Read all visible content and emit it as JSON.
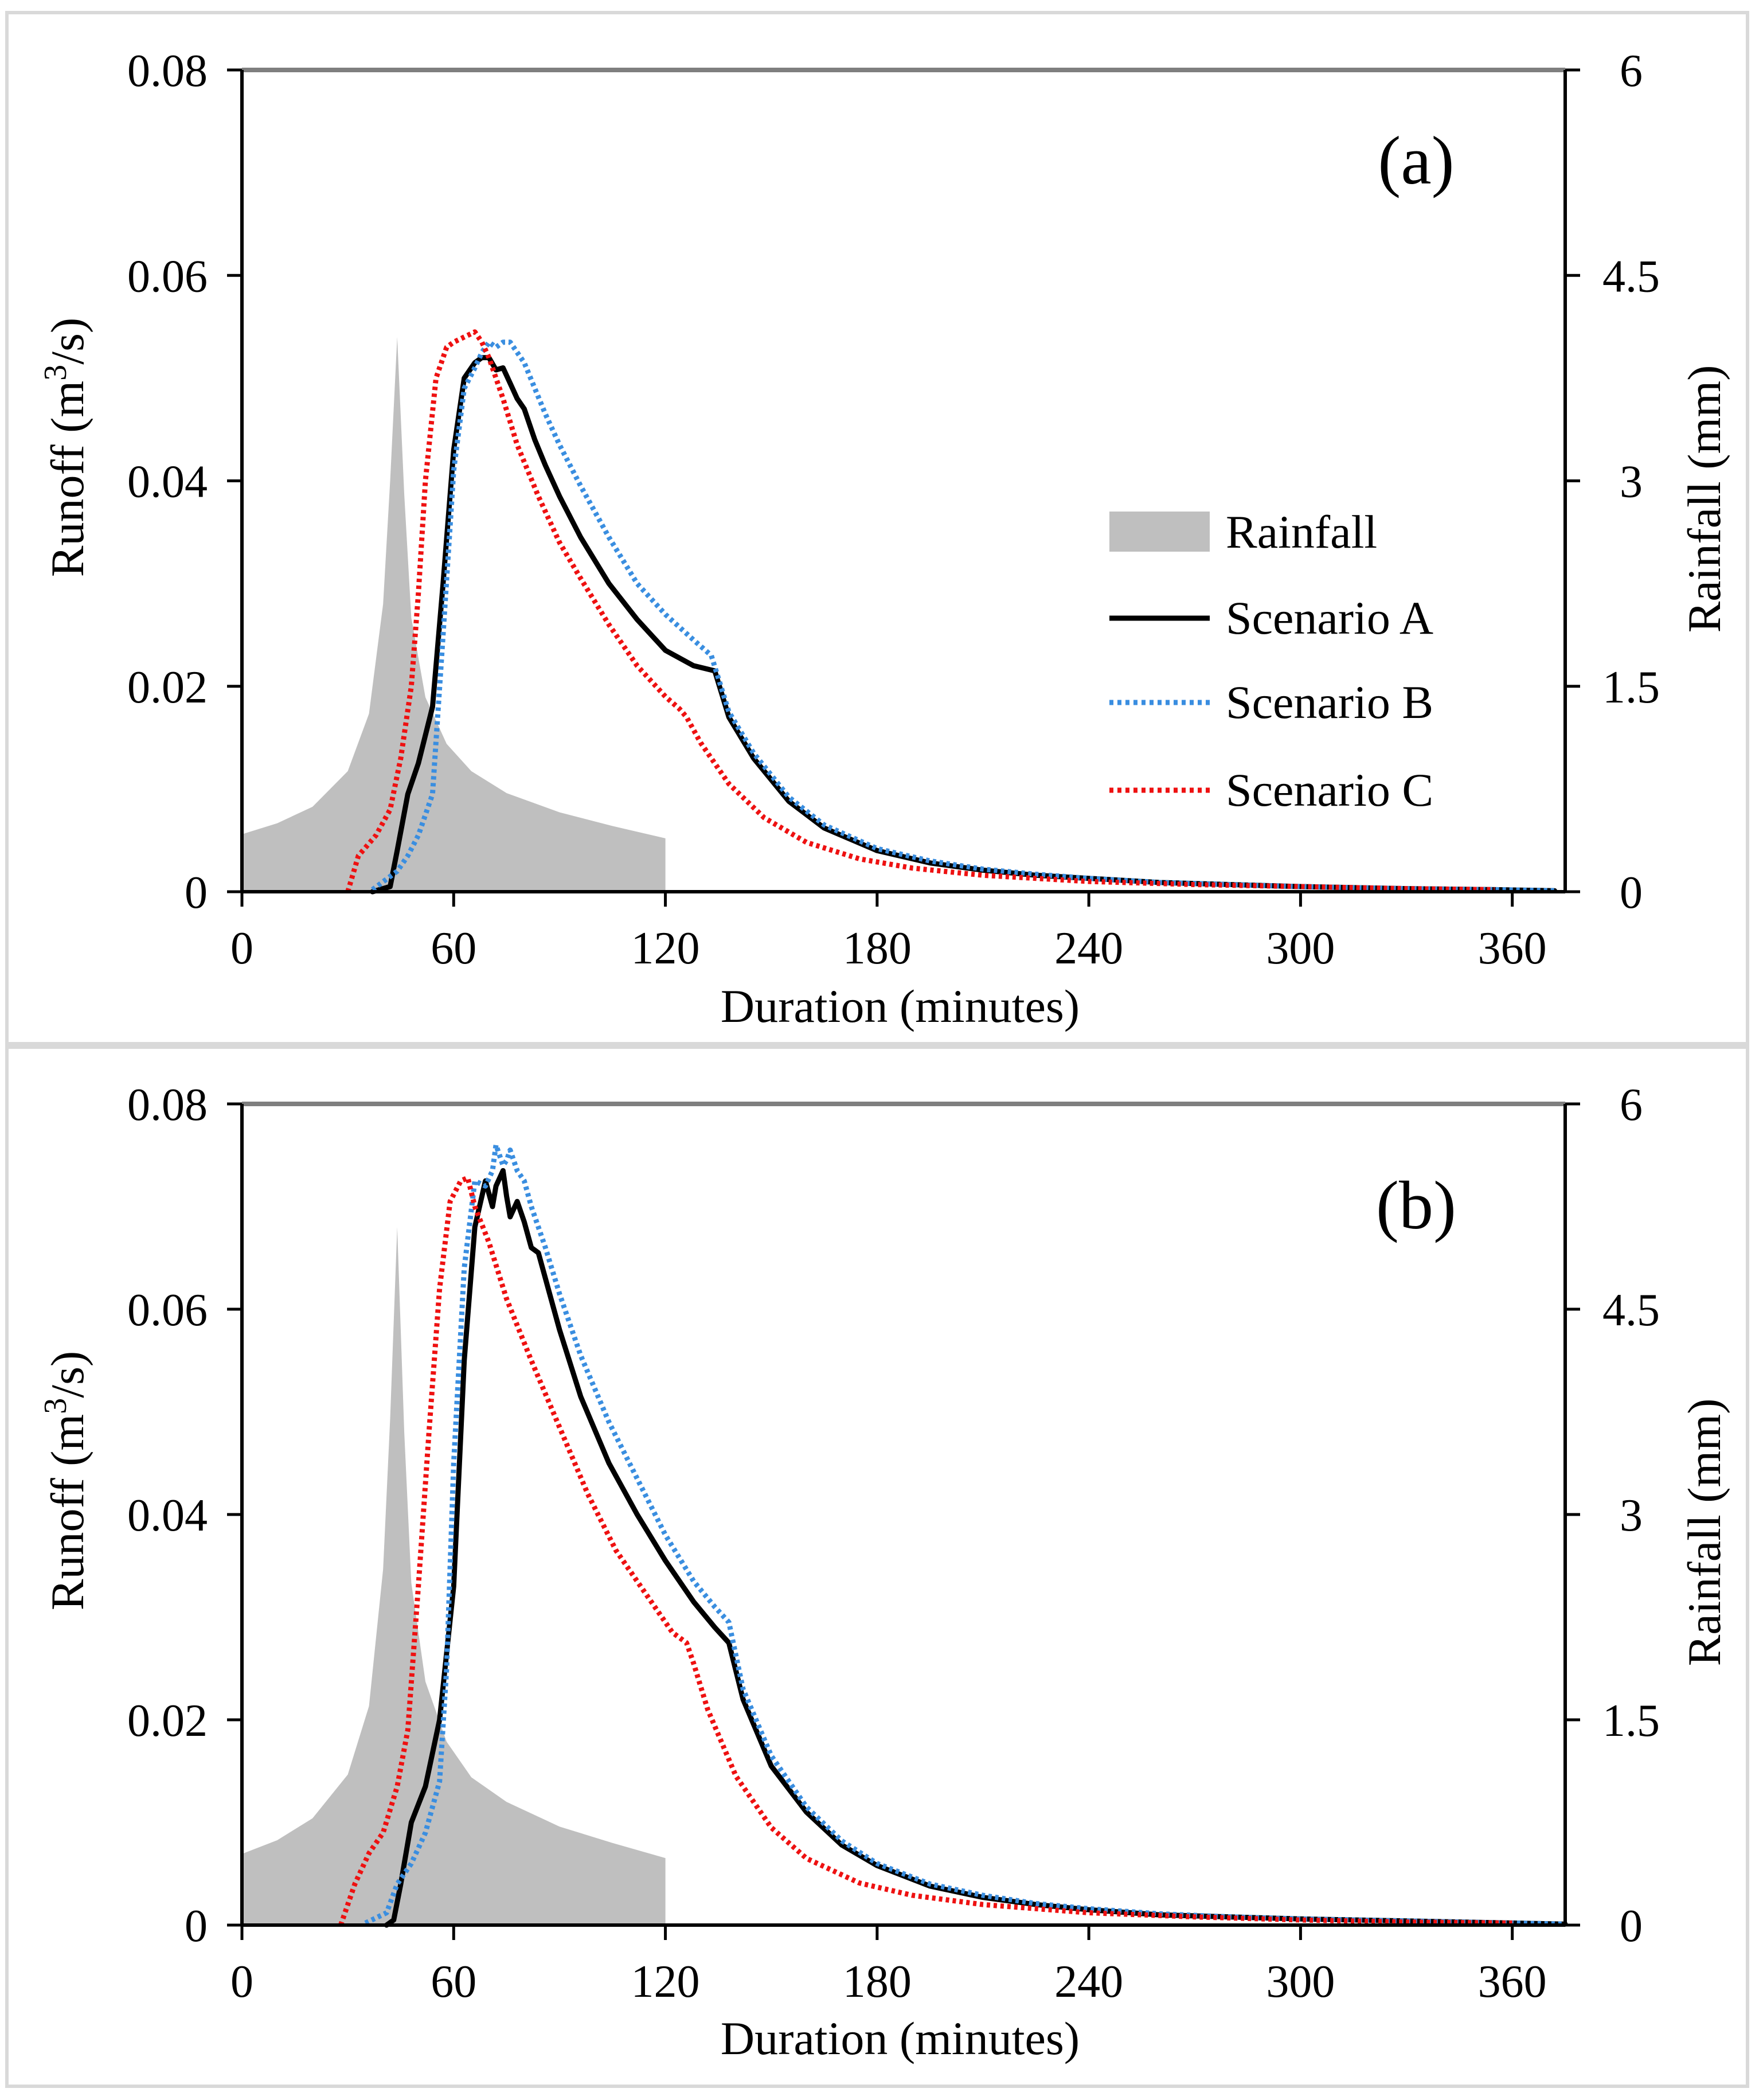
{
  "colors": {
    "rainfall": "#bfbfbf",
    "scenario_a": "#000000",
    "scenario_b": "#3a8ee0",
    "scenario_c": "#ee1111",
    "frame": "#d9d9d9"
  },
  "legend": {
    "rainfall": "Rainfall",
    "scenario_a": "Scenario A",
    "scenario_b": "Scenario B",
    "scenario_c": "Scenario C"
  },
  "chart_data": [
    {
      "type": "line",
      "panel": "(a)",
      "xlabel": "Duration (minutes)",
      "ylabel_prefix": "Runoff (m",
      "ylabel_sup": "3",
      "ylabel_suffix": "/s)",
      "y2label": "Rainfall (mm)",
      "xlim": [
        0,
        375
      ],
      "ylim": [
        0,
        0.08
      ],
      "y2lim": [
        0,
        6
      ],
      "xticks": [
        "0",
        "60",
        "120",
        "180",
        "240",
        "300",
        "360"
      ],
      "yticks": [
        "0",
        "0.02",
        "0.04",
        "0.06",
        "0.08"
      ],
      "y2ticks": [
        "0",
        "1.5",
        "3",
        "4.5",
        "6"
      ],
      "rainfall": {
        "name": "Rainfall",
        "axis": "right",
        "x": [
          0,
          10,
          20,
          30,
          36,
          40,
          42,
          44,
          46,
          48,
          52,
          58,
          65,
          75,
          90,
          105,
          120
        ],
        "values": [
          0.42,
          0.5,
          0.62,
          0.88,
          1.3,
          2.1,
          3.0,
          4.05,
          2.9,
          2.0,
          1.42,
          1.08,
          0.88,
          0.72,
          0.58,
          0.48,
          0.39
        ]
      },
      "series": [
        {
          "name": "Scenario A",
          "x": [
            37,
            42,
            44,
            47,
            50,
            54,
            57,
            60,
            63,
            66,
            68,
            70,
            72,
            74,
            76,
            78,
            80,
            83,
            86,
            90,
            96,
            104,
            112,
            120,
            128,
            134,
            138,
            145,
            155,
            165,
            180,
            195,
            210,
            225,
            240,
            260,
            280,
            300,
            330,
            355,
            372
          ],
          "values": [
            0,
            0.0005,
            0.004,
            0.0095,
            0.0125,
            0.018,
            0.03,
            0.043,
            0.05,
            0.0515,
            0.052,
            0.052,
            0.0508,
            0.051,
            0.0495,
            0.048,
            0.047,
            0.044,
            0.0415,
            0.0385,
            0.0345,
            0.03,
            0.0265,
            0.0235,
            0.022,
            0.0215,
            0.017,
            0.013,
            0.0088,
            0.0062,
            0.004,
            0.0028,
            0.0021,
            0.0016,
            0.0013,
            0.0009,
            0.0007,
            0.0005,
            0.0003,
            0.0002,
            0.0001
          ]
        },
        {
          "name": "Scenario B",
          "x": [
            37,
            44,
            47,
            50,
            54,
            57,
            60,
            63,
            66,
            68,
            70,
            72,
            74,
            76,
            78,
            80,
            83,
            86,
            90,
            96,
            104,
            112,
            120,
            128,
            133,
            138,
            145,
            155,
            165,
            180,
            195,
            210,
            225,
            240,
            260,
            280,
            300,
            330,
            355,
            372
          ],
          "values": [
            0.0002,
            0.002,
            0.0035,
            0.0055,
            0.0095,
            0.025,
            0.041,
            0.049,
            0.051,
            0.0525,
            0.0535,
            0.053,
            0.0535,
            0.0535,
            0.0525,
            0.0515,
            0.049,
            0.0465,
            0.0435,
            0.0395,
            0.0345,
            0.03,
            0.027,
            0.0245,
            0.023,
            0.0175,
            0.0135,
            0.0092,
            0.0065,
            0.0042,
            0.003,
            0.0022,
            0.0017,
            0.0013,
            0.0009,
            0.0007,
            0.0005,
            0.0003,
            0.0002,
            0.0001
          ]
        },
        {
          "name": "Scenario C",
          "x": [
            30,
            33,
            38,
            42,
            45,
            48,
            50,
            52,
            55,
            58,
            60,
            63,
            66,
            68,
            70,
            74,
            78,
            84,
            90,
            96,
            104,
            112,
            120,
            124,
            126,
            130,
            138,
            148,
            160,
            175,
            190,
            210,
            240,
            270,
            300,
            330,
            355
          ],
          "values": [
            0,
            0.0035,
            0.0055,
            0.008,
            0.013,
            0.02,
            0.029,
            0.04,
            0.05,
            0.053,
            0.0535,
            0.054,
            0.0545,
            0.0535,
            0.052,
            0.048,
            0.0435,
            0.0385,
            0.034,
            0.0305,
            0.026,
            0.022,
            0.019,
            0.0178,
            0.017,
            0.0145,
            0.0105,
            0.0072,
            0.0048,
            0.0032,
            0.0023,
            0.0016,
            0.001,
            0.0007,
            0.0005,
            0.0003,
            0.0002
          ]
        }
      ]
    },
    {
      "type": "line",
      "panel": "(b)",
      "xlabel": "Duration (minutes)",
      "ylabel_prefix": "Runoff (m",
      "ylabel_sup": "3",
      "ylabel_suffix": "/s)",
      "y2label": "Rainfall (mm)",
      "xlim": [
        0,
        375
      ],
      "ylim": [
        0,
        0.08
      ],
      "y2lim": [
        0,
        6
      ],
      "xticks": [
        "0",
        "60",
        "120",
        "180",
        "240",
        "300",
        "360"
      ],
      "yticks": [
        "0",
        "0.02",
        "0.04",
        "0.06",
        "0.08"
      ],
      "y2ticks": [
        "0",
        "1.5",
        "3",
        "4.5",
        "6"
      ],
      "rainfall": {
        "name": "Rainfall",
        "axis": "right",
        "x": [
          0,
          10,
          20,
          30,
          36,
          40,
          42,
          44,
          46,
          48,
          52,
          58,
          65,
          75,
          90,
          105,
          120
        ],
        "values": [
          0.52,
          0.62,
          0.78,
          1.1,
          1.6,
          2.6,
          3.7,
          5.1,
          3.6,
          2.5,
          1.78,
          1.34,
          1.08,
          0.9,
          0.72,
          0.6,
          0.49
        ]
      },
      "series": [
        {
          "name": "Scenario A",
          "x": [
            41,
            43,
            45,
            48,
            52,
            56,
            60,
            63,
            66,
            69,
            71,
            72,
            74,
            75,
            76,
            78,
            80,
            82,
            84,
            86,
            90,
            96,
            104,
            112,
            120,
            128,
            134,
            138,
            142,
            150,
            160,
            170,
            180,
            195,
            210,
            225,
            240,
            260,
            280,
            300,
            330,
            360,
            375
          ],
          "values": [
            0,
            0.0005,
            0.004,
            0.01,
            0.0135,
            0.02,
            0.033,
            0.055,
            0.068,
            0.0725,
            0.07,
            0.072,
            0.0735,
            0.071,
            0.069,
            0.0705,
            0.0685,
            0.066,
            0.0655,
            0.063,
            0.058,
            0.0515,
            0.045,
            0.04,
            0.0355,
            0.0315,
            0.029,
            0.0275,
            0.022,
            0.0155,
            0.011,
            0.0078,
            0.0058,
            0.0038,
            0.0027,
            0.002,
            0.0015,
            0.001,
            0.0008,
            0.0006,
            0.0004,
            0.0002,
            0.0001
          ]
        },
        {
          "name": "Scenario B",
          "x": [
            35,
            41,
            44,
            48,
            52,
            56,
            58,
            60,
            63,
            66,
            69,
            71,
            72,
            74,
            75,
            76,
            78,
            80,
            82,
            86,
            90,
            96,
            104,
            112,
            120,
            128,
            134,
            138,
            142,
            150,
            160,
            170,
            180,
            195,
            210,
            225,
            240,
            260,
            280,
            300,
            330,
            360,
            375
          ],
          "values": [
            0.0002,
            0.0012,
            0.004,
            0.006,
            0.009,
            0.014,
            0.025,
            0.045,
            0.064,
            0.0725,
            0.072,
            0.0735,
            0.076,
            0.074,
            0.0745,
            0.0755,
            0.0735,
            0.0725,
            0.07,
            0.066,
            0.0615,
            0.0555,
            0.049,
            0.0435,
            0.038,
            0.0335,
            0.031,
            0.0295,
            0.023,
            0.0165,
            0.0115,
            0.0082,
            0.006,
            0.004,
            0.0029,
            0.0021,
            0.0016,
            0.0011,
            0.0008,
            0.0006,
            0.0004,
            0.0002,
            0.0001
          ]
        },
        {
          "name": "Scenario C",
          "x": [
            28,
            32,
            36,
            40,
            44,
            47,
            50,
            53,
            56,
            59,
            62,
            64,
            66,
            70,
            75,
            82,
            90,
            98,
            106,
            114,
            122,
            126,
            128,
            132,
            140,
            150,
            160,
            175,
            190,
            210,
            240,
            270,
            300,
            330,
            360
          ],
          "values": [
            0,
            0.004,
            0.007,
            0.009,
            0.0135,
            0.019,
            0.033,
            0.048,
            0.062,
            0.0705,
            0.0725,
            0.0728,
            0.07,
            0.0665,
            0.061,
            0.055,
            0.0485,
            0.042,
            0.0365,
            0.0325,
            0.0285,
            0.0275,
            0.0255,
            0.021,
            0.0145,
            0.0095,
            0.0065,
            0.0041,
            0.0029,
            0.002,
            0.0012,
            0.0008,
            0.0005,
            0.0003,
            0.0002
          ]
        }
      ]
    }
  ]
}
